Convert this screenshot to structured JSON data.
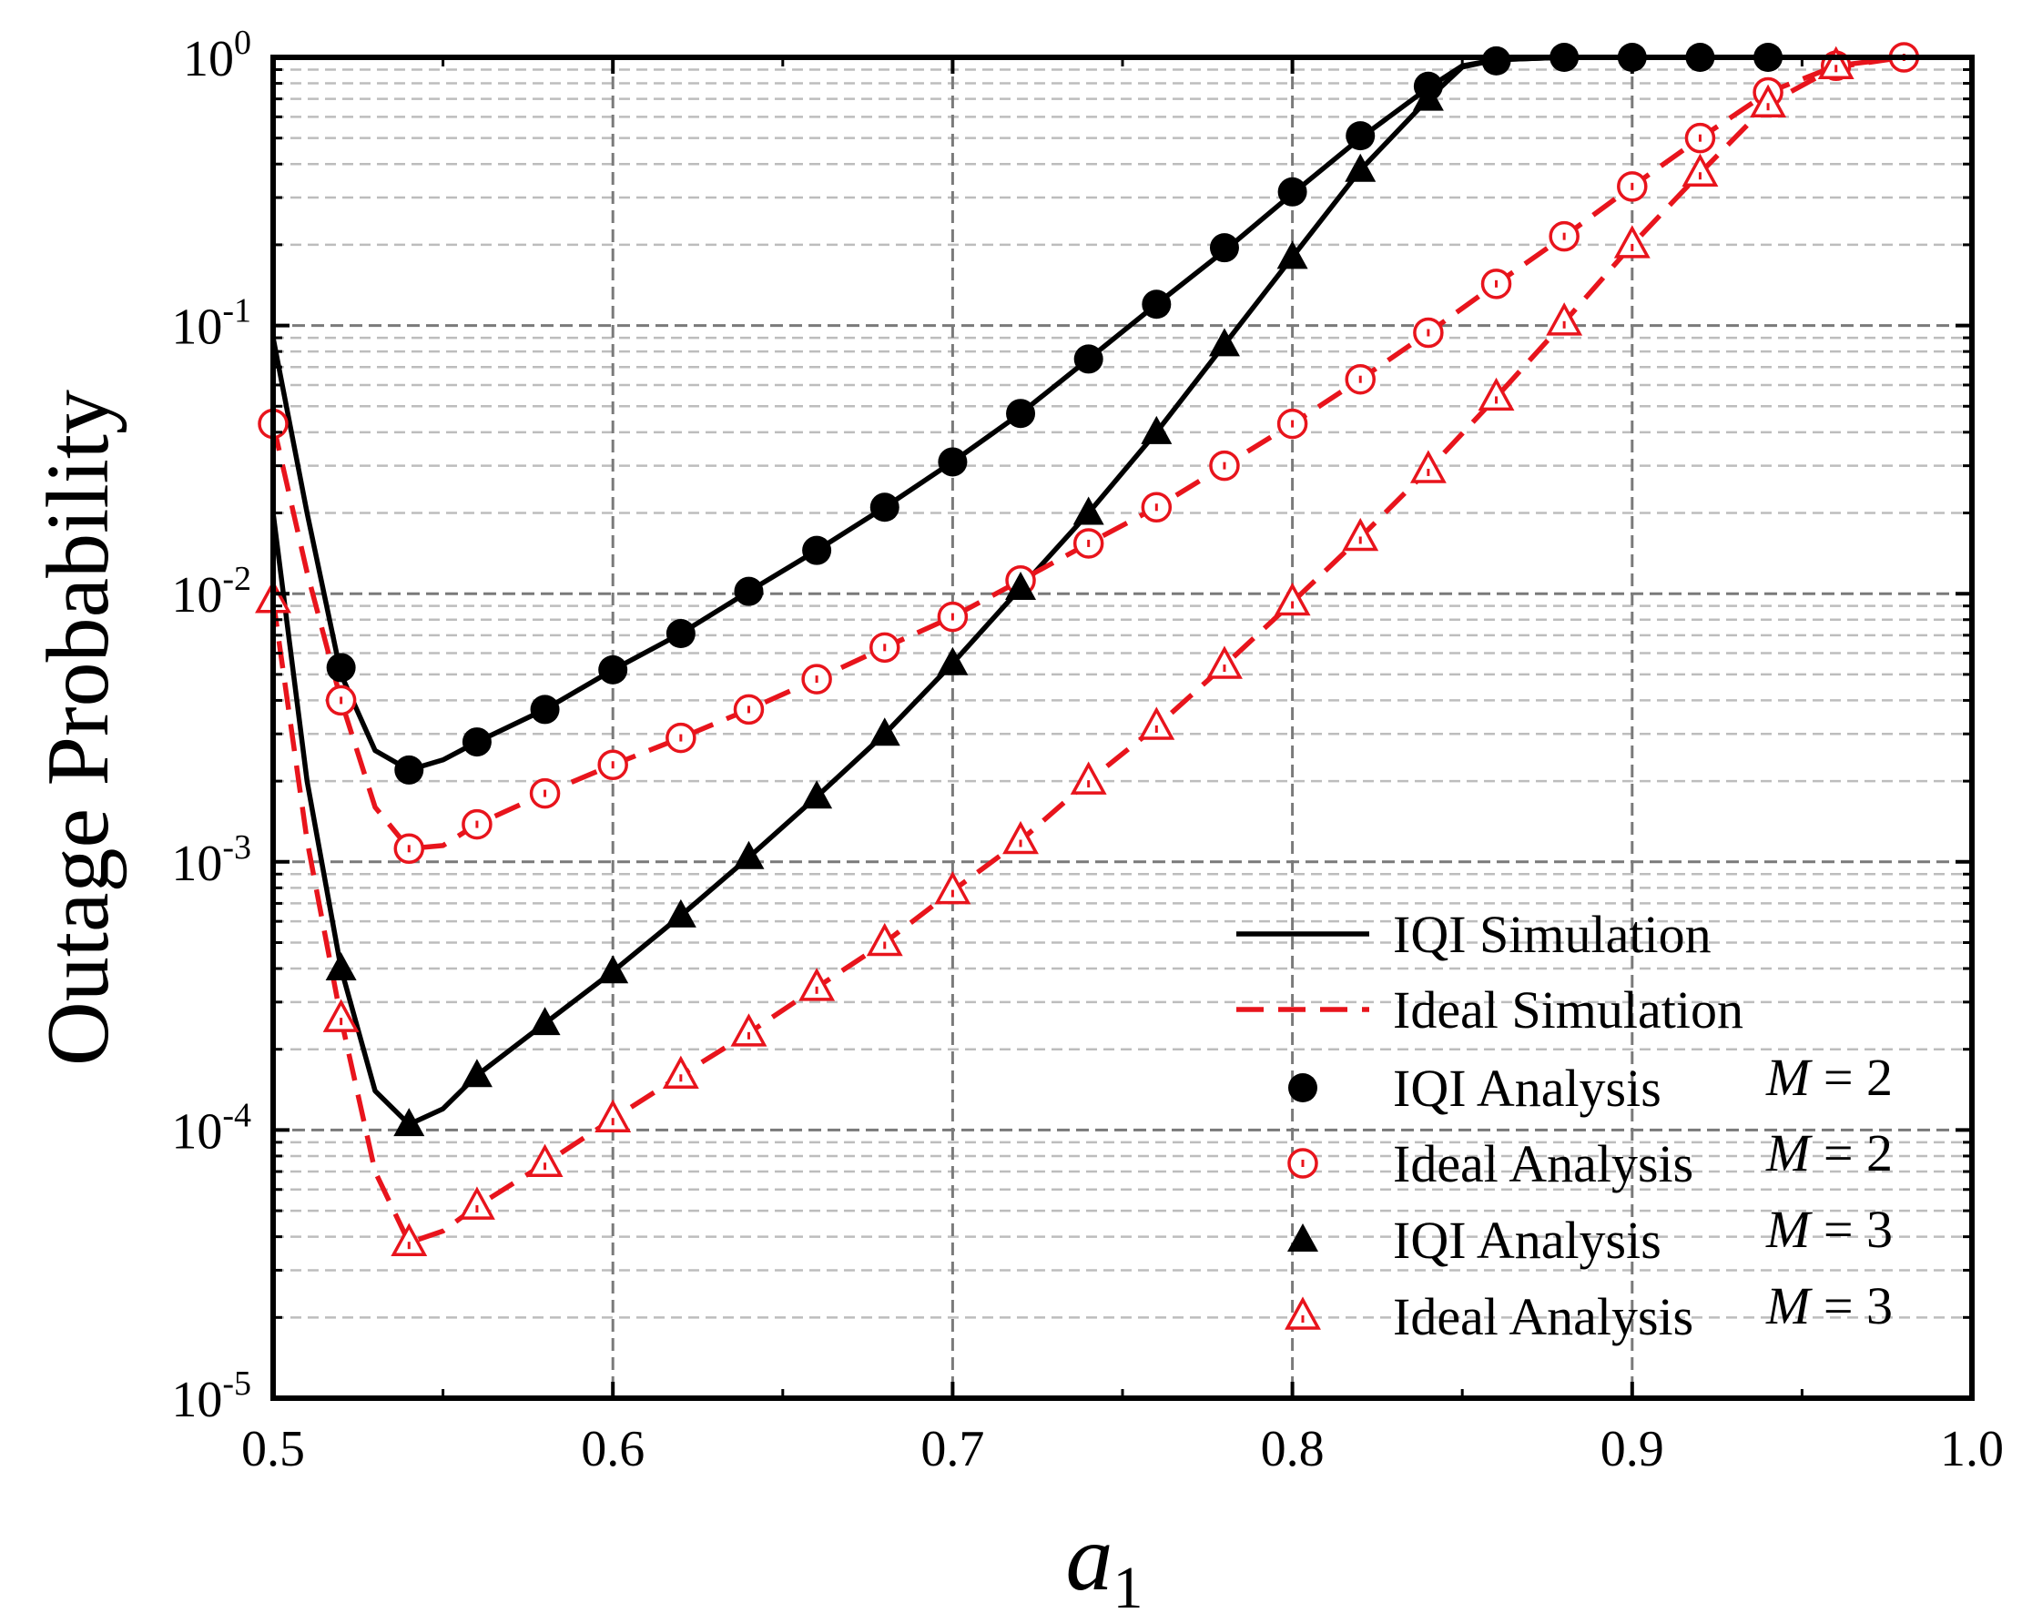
{
  "chart_data": {
    "type": "line",
    "title": "",
    "xlabel": "a",
    "xlabel_subscript": "1",
    "ylabel": "Outage Probability",
    "xlim": [
      0.5,
      1.0
    ],
    "ylim": [
      1e-05,
      1
    ],
    "yscale": "log",
    "grid": true,
    "legend_position": "bottom-right",
    "x_ticks": [
      "0.5",
      "0.6",
      "0.7",
      "0.8",
      "0.9",
      "1.0"
    ],
    "y_ticks": [
      {
        "base": "10",
        "exp": "0"
      },
      {
        "base": "10",
        "exp": "-1"
      },
      {
        "base": "10",
        "exp": "-2"
      },
      {
        "base": "10",
        "exp": "-3"
      },
      {
        "base": "10",
        "exp": "-4"
      },
      {
        "base": "10",
        "exp": "-5"
      }
    ],
    "series": [
      {
        "name": "IQI Simulation",
        "param": "M = 2",
        "color": "#000000",
        "style": "solid",
        "marker": "none",
        "x": [
          0.5,
          0.51,
          0.52,
          0.53,
          0.54,
          0.55,
          0.56,
          0.58,
          0.6,
          0.62,
          0.64,
          0.66,
          0.68,
          0.7,
          0.72,
          0.74,
          0.76,
          0.78,
          0.8,
          0.82,
          0.84,
          0.85,
          0.86,
          0.88,
          0.9,
          0.92,
          0.94,
          0.96,
          0.98,
          1.0
        ],
        "y": [
          0.09,
          0.02,
          0.005,
          0.0026,
          0.0022,
          0.0024,
          0.0028,
          0.0037,
          0.0052,
          0.0071,
          0.0102,
          0.0145,
          0.021,
          0.031,
          0.047,
          0.075,
          0.12,
          0.19,
          0.31,
          0.5,
          0.77,
          0.93,
          0.98,
          1.0,
          1.0,
          1.0,
          1.0,
          1.0,
          1.0,
          1.0
        ]
      },
      {
        "name": "IQI Simulation",
        "param": "M = 3",
        "color": "#000000",
        "style": "solid",
        "marker": "none",
        "x": [
          0.5,
          0.51,
          0.52,
          0.53,
          0.54,
          0.55,
          0.56,
          0.58,
          0.6,
          0.62,
          0.64,
          0.66,
          0.68,
          0.7,
          0.72,
          0.74,
          0.76,
          0.78,
          0.8,
          0.82,
          0.84,
          0.85,
          0.86,
          0.88,
          0.9,
          0.92,
          0.94,
          0.96,
          0.98,
          1.0
        ],
        "y": [
          0.02,
          0.002,
          0.0004,
          0.00014,
          0.000105,
          0.00012,
          0.00016,
          0.00025,
          0.00039,
          0.00063,
          0.00104,
          0.00175,
          0.003,
          0.0055,
          0.0105,
          0.02,
          0.04,
          0.085,
          0.18,
          0.38,
          0.7,
          0.92,
          0.98,
          1.0,
          1.0,
          1.0,
          1.0,
          1.0,
          1.0,
          1.0
        ]
      },
      {
        "name": "Ideal Simulation",
        "param": "M = 2",
        "color": "#e8141c",
        "style": "dashed",
        "marker": "none",
        "x": [
          0.5,
          0.51,
          0.52,
          0.53,
          0.54,
          0.55,
          0.56,
          0.58,
          0.6,
          0.62,
          0.64,
          0.66,
          0.68,
          0.7,
          0.72,
          0.74,
          0.76,
          0.78,
          0.8,
          0.82,
          0.84,
          0.86,
          0.88,
          0.9,
          0.92,
          0.94,
          0.96,
          0.98,
          1.0
        ],
        "y": [
          0.043,
          0.012,
          0.004,
          0.0016,
          0.00112,
          0.00115,
          0.00138,
          0.0018,
          0.0023,
          0.0029,
          0.0037,
          0.0048,
          0.0063,
          0.0082,
          0.0112,
          0.0154,
          0.021,
          0.03,
          0.043,
          0.063,
          0.094,
          0.143,
          0.215,
          0.33,
          0.5,
          0.74,
          0.93,
          1.0,
          1.0
        ]
      },
      {
        "name": "Ideal Simulation",
        "param": "M = 3",
        "color": "#e8141c",
        "style": "dashed",
        "marker": "none",
        "x": [
          0.5,
          0.51,
          0.52,
          0.53,
          0.54,
          0.55,
          0.56,
          0.58,
          0.6,
          0.62,
          0.64,
          0.66,
          0.68,
          0.7,
          0.72,
          0.74,
          0.76,
          0.78,
          0.8,
          0.82,
          0.84,
          0.86,
          0.88,
          0.9,
          0.92,
          0.94,
          0.96,
          0.98,
          1.0
        ],
        "y": [
          0.0095,
          0.0012,
          0.00026,
          7e-05,
          3.8e-05,
          4.2e-05,
          5.2e-05,
          7.5e-05,
          0.00011,
          0.00016,
          0.00023,
          0.00034,
          0.0005,
          0.00078,
          0.0012,
          0.002,
          0.0032,
          0.0054,
          0.0093,
          0.0162,
          0.029,
          0.054,
          0.103,
          0.2,
          0.37,
          0.67,
          0.92,
          1.0,
          1.0
        ]
      },
      {
        "name": "IQI Analysis",
        "param": "M = 2",
        "color": "#000000",
        "marker": "filled-circle",
        "x": [
          0.52,
          0.54,
          0.56,
          0.58,
          0.6,
          0.62,
          0.64,
          0.66,
          0.68,
          0.7,
          0.72,
          0.74,
          0.76,
          0.78,
          0.8,
          0.82,
          0.84,
          0.86,
          0.88,
          0.9,
          0.92,
          0.94
        ],
        "y": [
          0.0053,
          0.0022,
          0.0028,
          0.0037,
          0.0052,
          0.0071,
          0.0102,
          0.0145,
          0.021,
          0.031,
          0.047,
          0.075,
          0.12,
          0.195,
          0.315,
          0.51,
          0.78,
          0.97,
          1.0,
          1.0,
          1.0,
          1.0
        ]
      },
      {
        "name": "Ideal Analysis",
        "param": "M = 2",
        "color": "#e8141c",
        "marker": "open-circle",
        "x": [
          0.5,
          0.52,
          0.54,
          0.56,
          0.58,
          0.6,
          0.62,
          0.64,
          0.66,
          0.68,
          0.7,
          0.72,
          0.74,
          0.76,
          0.78,
          0.8,
          0.82,
          0.84,
          0.86,
          0.88,
          0.9,
          0.92,
          0.94,
          0.96,
          0.98
        ],
        "y": [
          0.043,
          0.004,
          0.00112,
          0.00138,
          0.0018,
          0.0023,
          0.0029,
          0.0037,
          0.0048,
          0.0063,
          0.0082,
          0.0112,
          0.0154,
          0.021,
          0.03,
          0.043,
          0.063,
          0.094,
          0.143,
          0.215,
          0.33,
          0.5,
          0.74,
          0.93,
          1.0
        ]
      },
      {
        "name": "IQI Analysis",
        "param": "M = 3",
        "color": "#000000",
        "marker": "filled-triangle",
        "x": [
          0.52,
          0.54,
          0.56,
          0.58,
          0.6,
          0.62,
          0.64,
          0.66,
          0.68,
          0.7,
          0.72,
          0.74,
          0.76,
          0.78,
          0.8,
          0.82,
          0.84
        ],
        "y": [
          0.0004,
          0.000105,
          0.00016,
          0.00025,
          0.00039,
          0.00063,
          0.00104,
          0.00175,
          0.003,
          0.0055,
          0.0105,
          0.02,
          0.04,
          0.085,
          0.18,
          0.38,
          0.7
        ]
      },
      {
        "name": "Ideal Analysis",
        "param": "M = 3",
        "color": "#e8141c",
        "marker": "open-triangle",
        "x": [
          0.5,
          0.52,
          0.54,
          0.56,
          0.58,
          0.6,
          0.62,
          0.64,
          0.66,
          0.68,
          0.7,
          0.72,
          0.74,
          0.76,
          0.78,
          0.8,
          0.82,
          0.84,
          0.86,
          0.88,
          0.9,
          0.92,
          0.94,
          0.96
        ],
        "y": [
          0.0095,
          0.00026,
          3.8e-05,
          5.2e-05,
          7.5e-05,
          0.00011,
          0.00016,
          0.00023,
          0.00034,
          0.0005,
          0.00078,
          0.0012,
          0.002,
          0.0032,
          0.0054,
          0.0093,
          0.0162,
          0.029,
          0.054,
          0.103,
          0.2,
          0.37,
          0.67,
          0.93
        ]
      }
    ],
    "legend": [
      {
        "label": "IQI Simulation",
        "symbol": "solid-line",
        "color": "#000000",
        "param": ""
      },
      {
        "label": "Ideal Simulation",
        "symbol": "dashed-line",
        "color": "#e8141c",
        "param": ""
      },
      {
        "label": "IQI Analysis",
        "symbol": "filled-circle",
        "color": "#000000",
        "param": "M = 2"
      },
      {
        "label": "Ideal Analysis",
        "symbol": "open-circle",
        "color": "#e8141c",
        "param": "M = 2"
      },
      {
        "label": "IQI Analysis",
        "symbol": "filled-triangle",
        "color": "#000000",
        "param": "M = 3"
      },
      {
        "label": "Ideal Analysis",
        "symbol": "open-triangle",
        "color": "#e8141c",
        "param": "M = 3"
      }
    ]
  }
}
